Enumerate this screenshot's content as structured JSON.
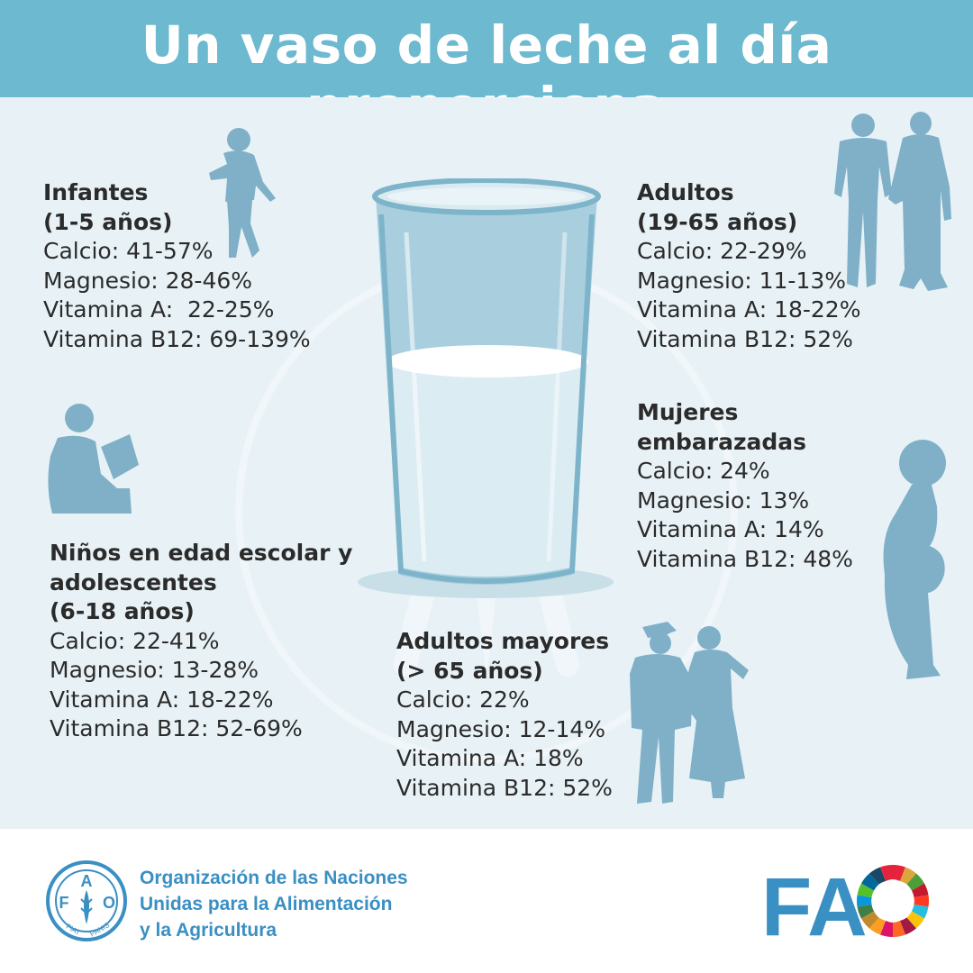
{
  "header": {
    "title": "Un vaso de leche al día proporciona"
  },
  "groups": [
    {
      "title_lines": [
        "Infantes",
        "(1-5 años)"
      ],
      "items": [
        "Calcio: 41-57%",
        "Magnesio: 28-46%",
        "Vitamina A:  22-25%",
        "Vitamina B12: 69-139%"
      ]
    },
    {
      "title_lines": [
        "Adultos",
        "(19-65 años)"
      ],
      "items": [
        "Calcio: 22-29%",
        "Magnesio: 11-13%",
        "Vitamina A: 18-22%",
        "Vitamina B12: 52%"
      ]
    },
    {
      "title_lines": [
        "Mujeres",
        "embarazadas"
      ],
      "items": [
        "Calcio: 24%",
        "Magnesio: 13%",
        "Vitamina A: 14%",
        "Vitamina B12: 48%"
      ]
    },
    {
      "title_lines": [
        "Niños en edad escolar y",
        "adolescentes",
        "(6-18 años)"
      ],
      "items": [
        "Calcio: 22-41%",
        "Magnesio: 13-28%",
        "Vitamina A: 18-22%",
        "Vitamina B12: 52-69%"
      ]
    },
    {
      "title_lines": [
        "Adultos mayores",
        "(> 65 años)"
      ],
      "items": [
        "Calcio: 22%",
        "Magnesio: 12-14%",
        "Vitamina A: 18%",
        "Vitamina B12: 52%"
      ]
    }
  ],
  "footer": {
    "org_lines": [
      "Organización de las Naciones",
      "Unidas para la Alimentación",
      "y la Agricultura"
    ],
    "logo_letters": {
      "f": "F",
      "a": "A",
      "o": "O",
      "motto_left": "FIAT",
      "motto_right": "PANIS"
    },
    "brand_letters": "FA"
  },
  "colors": {
    "header_bg": "#6cb9d0",
    "body_bg": "#e8f2f6",
    "silhouette": "#7fb0c8",
    "text": "#2b2b2b",
    "fao_blue": "#3a8fc3"
  },
  "icons": [
    "fao-emblem-icon",
    "milk-glass-icon",
    "child-running-icon",
    "child-reading-icon",
    "adult-couple-icon",
    "pregnant-woman-icon",
    "elderly-couple-icon",
    "sdg-wheel-icon"
  ]
}
